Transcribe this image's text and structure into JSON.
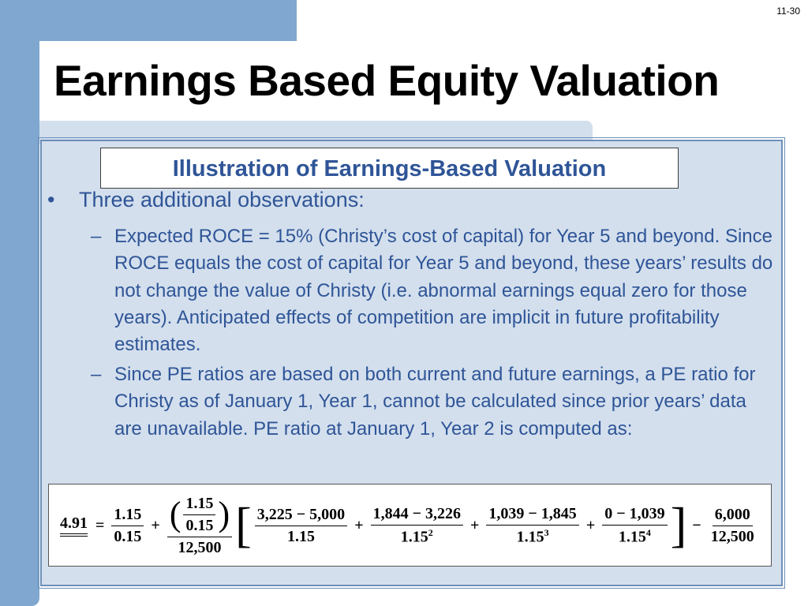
{
  "slide": {
    "number": "11-30",
    "title": "Earnings Based Equity Valuation",
    "subtitle": "Illustration of Earnings-Based Valuation"
  },
  "bullet": {
    "mark": "•",
    "text": "Three additional observations:"
  },
  "sub_items": [
    {
      "dash": "–",
      "text": "Expected ROCE = 15% (Christy’s cost of capital) for Year 5 and beyond. Since ROCE equals the cost of capital for Year 5 and beyond, these years’ results do not change the value of Christy (i.e. abnormal earnings equal zero for those years). Anticipated effects of competition are implicit in future profitability estimates."
    },
    {
      "dash": "–",
      "text": "Since PE ratios are based on both current and future earnings, a PE ratio for Christy as of January 1, Year 1, cannot be calculated since prior years’ data are unavailable. PE ratio at January 1, Year 2 is computed as:"
    }
  ],
  "formula": {
    "result": "4.91",
    "eq": "=",
    "plus": "+",
    "minus": "−",
    "paren_open": "(",
    "paren_close": ")",
    "bracket_open": "[",
    "bracket_close": "]",
    "f1_num": "1.15",
    "f1_den": "0.15",
    "f2_inner_num": "1.15",
    "f2_inner_den": "0.15",
    "f2_den": "12,500",
    "t1_num": "3,225 − 5,000",
    "t1_den": "1.15",
    "t2_num": "1,844 − 3,226",
    "t2_den_base": "1.15",
    "t2_den_exp": "2",
    "t3_num": "1,039 − 1,845",
    "t3_den_base": "1.15",
    "t3_den_exp": "3",
    "t4_num": "0 − 1,039",
    "t4_den_base": "1.15",
    "t4_den_exp": "4",
    "last_num": "6,000",
    "last_den": "12,500"
  }
}
